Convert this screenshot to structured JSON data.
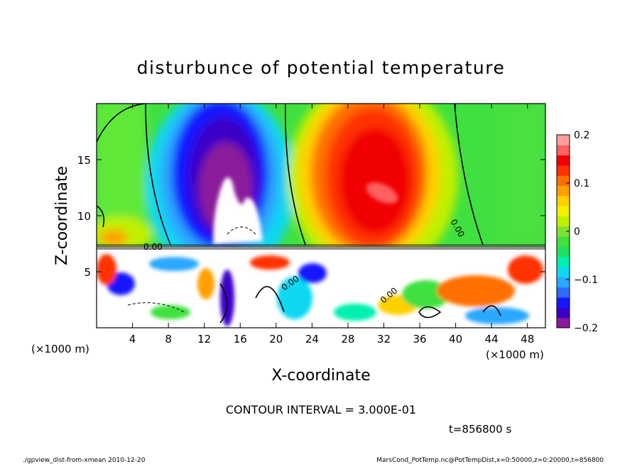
{
  "chart_data": {
    "type": "heatmap",
    "title": "disturbunce of potential temperature",
    "xlabel": "X-coordinate",
    "ylabel": "Z-coordinate",
    "x_unit_left": "(×1000 m)",
    "x_unit_right": "(×1000 m)",
    "xlim": [
      0,
      50
    ],
    "ylim": [
      0,
      20
    ],
    "x_ticks": [
      "4",
      "8",
      "12",
      "16",
      "20",
      "24",
      "28",
      "32",
      "36",
      "40",
      "44",
      "48"
    ],
    "x_tick_values": [
      4,
      8,
      12,
      16,
      20,
      24,
      28,
      32,
      36,
      40,
      44,
      48
    ],
    "y_ticks": [
      "5",
      "10",
      "15"
    ],
    "y_tick_values": [
      5,
      10,
      15
    ],
    "colorbar": {
      "range": [
        -0.2,
        0.2
      ],
      "tick_labels": [
        "0.2",
        "0.1",
        "0",
        "−0.1",
        "−0.2"
      ],
      "tick_values": [
        0.2,
        0.1,
        0,
        -0.1,
        -0.2
      ],
      "colors": [
        "#8b1a9a",
        "#3b00c8",
        "#1515ff",
        "#2f6bff",
        "#2ba7ff",
        "#10d8f0",
        "#00f0b0",
        "#20e060",
        "#40e040",
        "#80e030",
        "#c0f000",
        "#f0f000",
        "#ffd000",
        "#ffa000",
        "#ff7000",
        "#ff3000",
        "#f00000",
        "#ff6060",
        "#ffa0a0"
      ]
    },
    "features": [
      {
        "kind": "negative anomaly core",
        "x": 15,
        "z": 11,
        "value": -0.2
      },
      {
        "kind": "positive anomaly core",
        "x": 32,
        "z": 12,
        "value": 0.2
      },
      {
        "kind": "mixed layer top",
        "z": 7.3
      }
    ],
    "contour_labels": [
      "0.00",
      "0.00",
      "0.00",
      "0.00"
    ],
    "contour_interval_text": "CONTOUR INTERVAL = 3.000E-01",
    "time_text": "t=856800 s"
  },
  "footer": {
    "left": "./gpview_dist-from-xmean  2010-12-20",
    "right": "MarsCond_PotTemp.nc@PotTempDist,x=0:50000,z=0:20000,t=856800"
  }
}
